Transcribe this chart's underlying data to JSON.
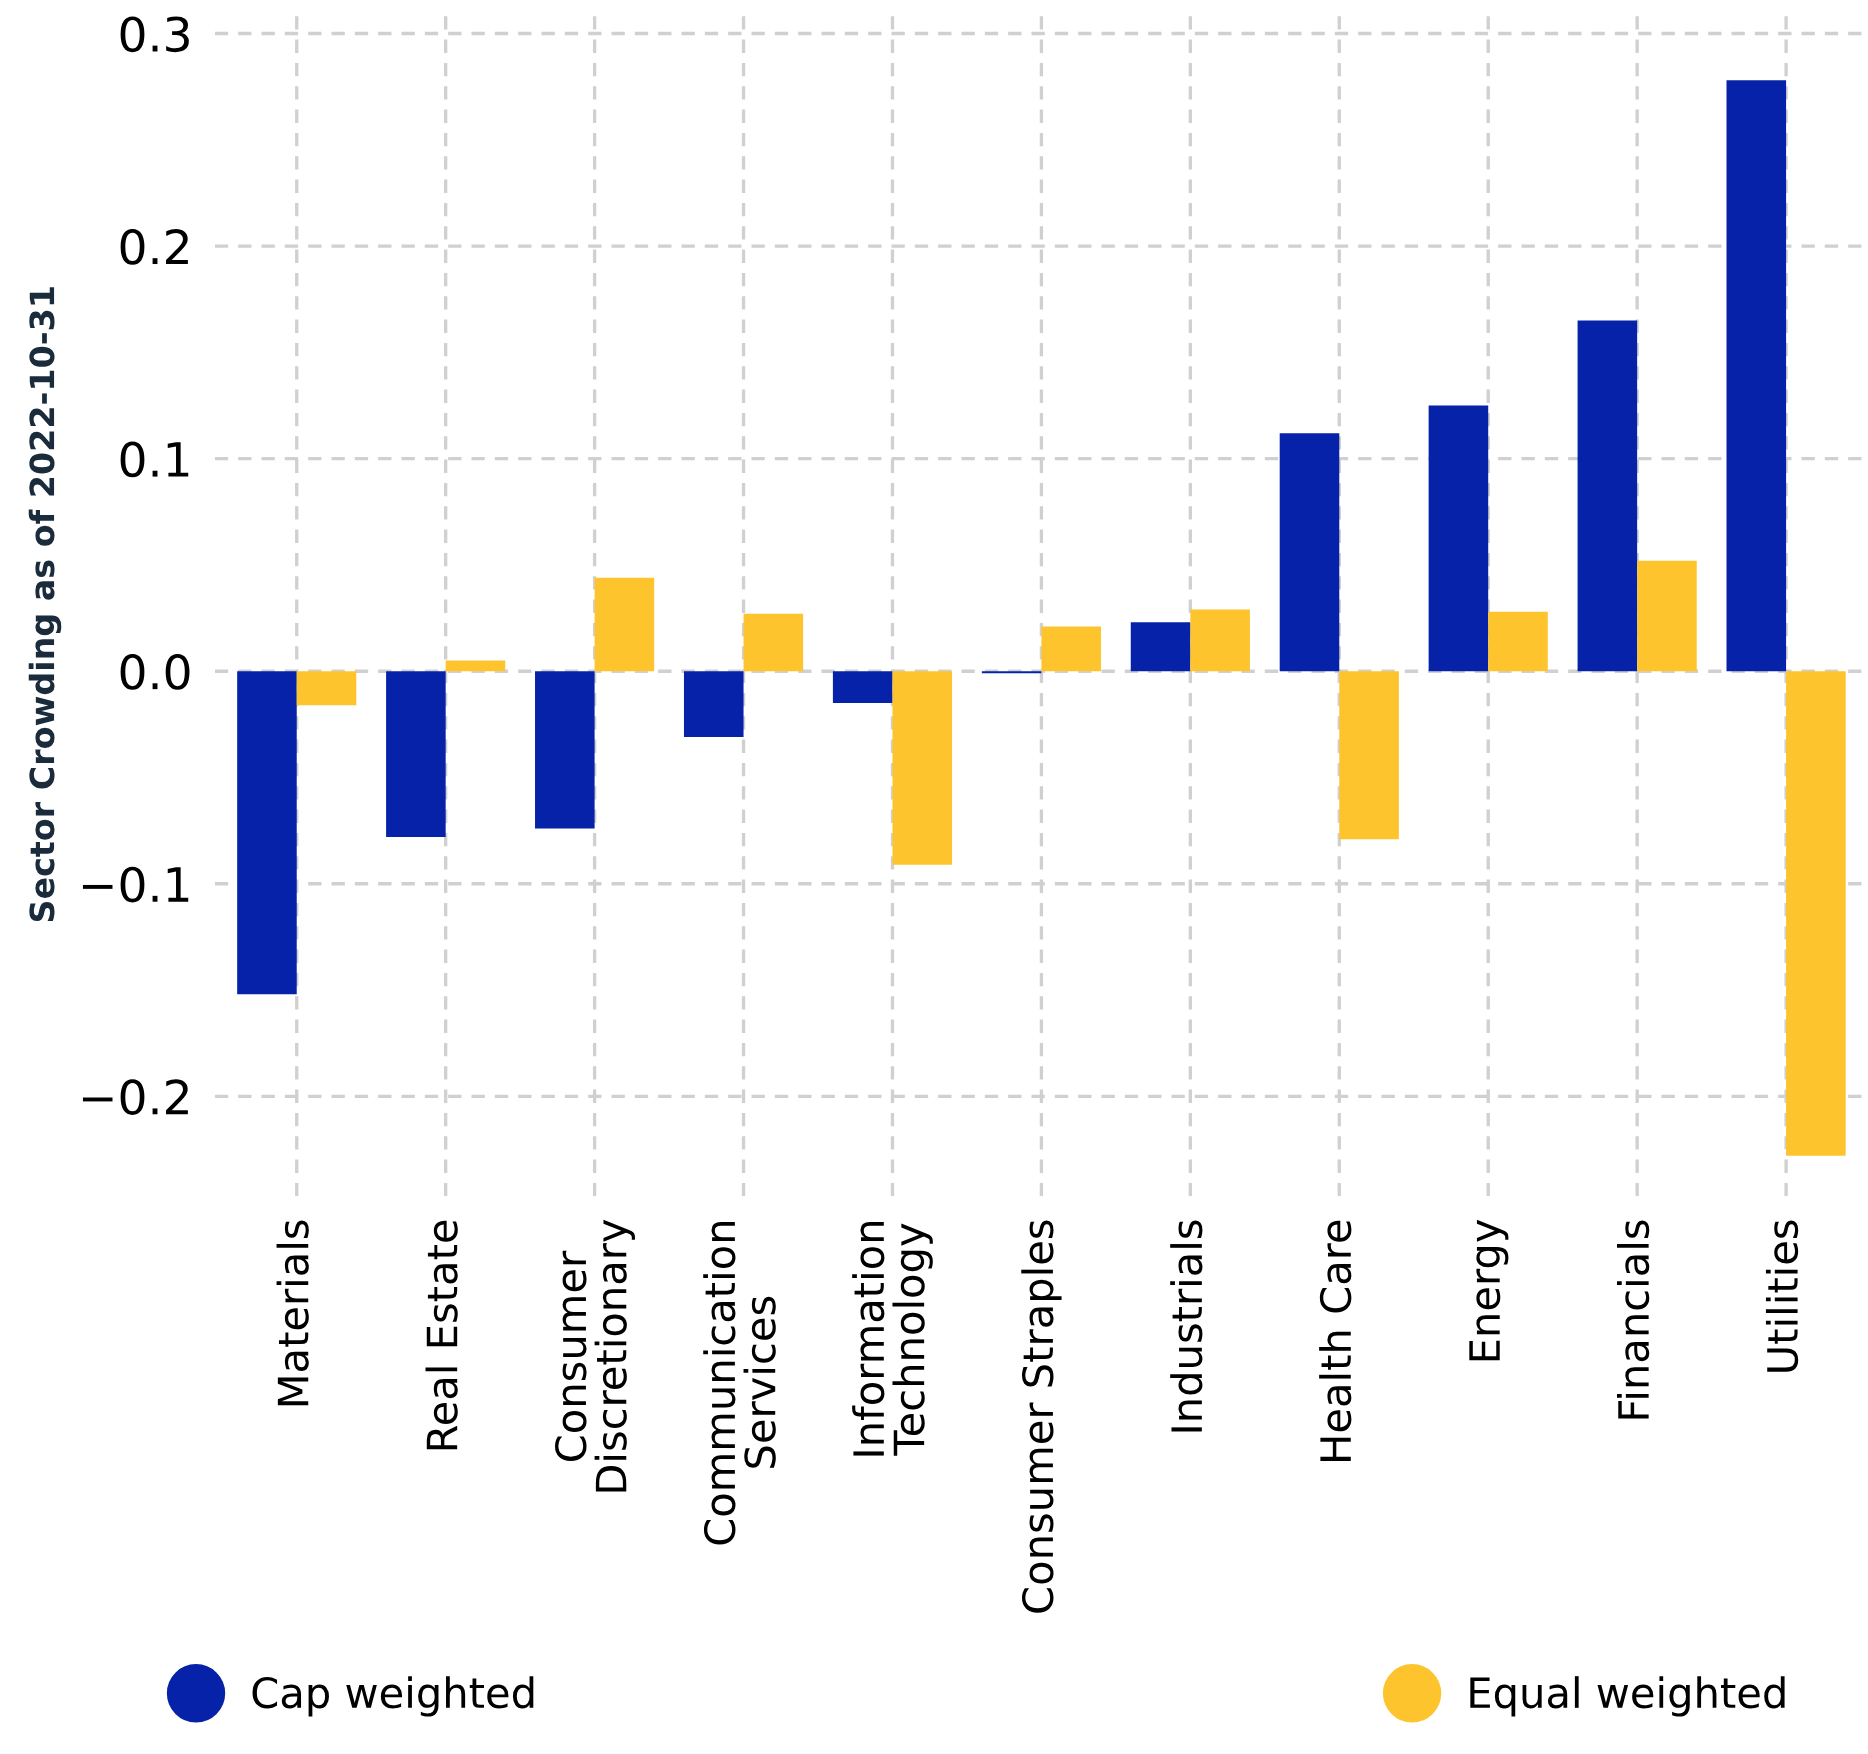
{
  "chart_data": {
    "type": "bar",
    "ylabel": "Sector Crowding as of 2022-10-31",
    "categories": [
      "Materials",
      "Real Estate",
      "Consumer\nDiscretionary",
      "Communication\nServices",
      "Information\nTechnology",
      "Consumer Straples",
      "Industrials",
      "Health Care",
      "Energy",
      "Financials",
      "Utilities"
    ],
    "series": [
      {
        "name": "Cap weighted",
        "color": "#0522a8",
        "values": [
          -0.152,
          -0.078,
          -0.074,
          -0.031,
          -0.015,
          -0.001,
          0.023,
          0.112,
          0.125,
          0.165,
          0.278
        ]
      },
      {
        "name": "Equal weighted",
        "color": "#fdc42e",
        "values": [
          -0.016,
          0.005,
          0.044,
          0.027,
          -0.091,
          0.021,
          0.029,
          -0.079,
          0.028,
          0.052,
          -0.228
        ]
      }
    ],
    "ylim": [
      -0.247,
      0.31
    ],
    "yticks": [
      {
        "value": -0.2,
        "label": "−0.2"
      },
      {
        "value": -0.1,
        "label": "−0.1"
      },
      {
        "value": 0,
        "label": "0.0"
      },
      {
        "value": 0.1,
        "label": "0.1"
      },
      {
        "value": 0.2,
        "label": "0.2"
      },
      {
        "value": 0.3,
        "label": "0.3"
      }
    ],
    "grid": true,
    "legend": "bottom",
    "marker": "circle"
  }
}
